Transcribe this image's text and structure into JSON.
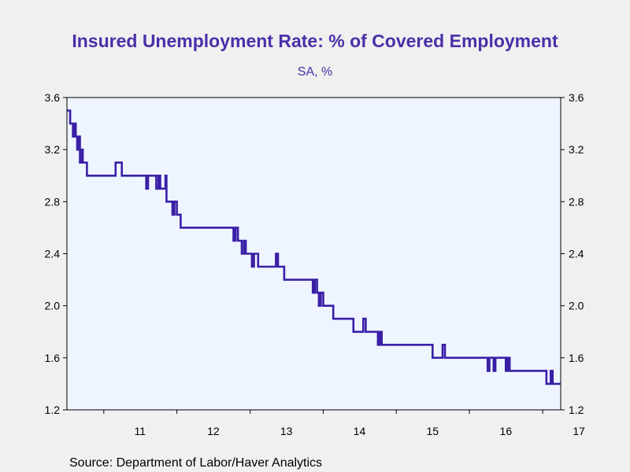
{
  "colors": {
    "title": "#4b2fa8",
    "line": "#3a1fa6",
    "plot_background": "#eef5ff",
    "page_background": "#f0f0f0",
    "axis": "#000000"
  },
  "chart_data": {
    "type": "line",
    "title": "Insured Unemployment Rate: % of Covered Employment",
    "subtitle": "SA, %",
    "source": "Source:  Department of Labor/Haver Analytics",
    "x_start": "2010-07",
    "x_end": "2017-04",
    "x_tick_labels": [
      "11",
      "12",
      "13",
      "14",
      "15",
      "16",
      "17"
    ],
    "y_ticks": [
      "3.6",
      "3.2",
      "2.8",
      "2.4",
      "2.0",
      "1.6",
      "1.2"
    ],
    "ylim": [
      1.2,
      3.6
    ],
    "right_axis": true,
    "grid": false,
    "series": [
      {
        "x": [
          "2010-07-03",
          "2010-07-10",
          "2010-07-17",
          "2010-07-24",
          "2010-07-31",
          "2010-08-07",
          "2010-08-14",
          "2010-08-21",
          "2010-08-28",
          "2010-09-04",
          "2010-09-11",
          "2010-09-18",
          "2010-09-25",
          "2010-10-02",
          "2010-10-09",
          "2010-10-16",
          "2010-10-23",
          "2010-10-30",
          "2010-11-06",
          "2010-11-13",
          "2010-11-20",
          "2010-11-27",
          "2010-12-04",
          "2010-12-11",
          "2010-12-18",
          "2010-12-25",
          "2011-01-01",
          "2011-02-01",
          "2011-03-01",
          "2011-04-01",
          "2011-04-10",
          "2011-04-15",
          "2011-04-20",
          "2011-05-01",
          "2011-06-01",
          "2011-07-01",
          "2011-08-01",
          "2011-08-10",
          "2011-08-20",
          "2011-09-01",
          "2011-09-20",
          "2011-10-01",
          "2011-10-10",
          "2011-10-20",
          "2011-11-01",
          "2011-11-05",
          "2011-11-10",
          "2011-11-20",
          "2011-12-01",
          "2011-12-10",
          "2011-12-20",
          "2012-01-01",
          "2012-01-10",
          "2012-01-20",
          "2012-02-01",
          "2012-02-10",
          "2012-03-01",
          "2012-04-01",
          "2012-05-01",
          "2012-06-01",
          "2012-07-01",
          "2012-08-01",
          "2012-09-01",
          "2012-10-01",
          "2012-10-10",
          "2012-10-20",
          "2012-11-01",
          "2012-11-10",
          "2012-11-20",
          "2012-12-01",
          "2012-12-10",
          "2012-12-20",
          "2013-01-01",
          "2013-01-10",
          "2013-01-20",
          "2013-02-01",
          "2013-02-10",
          "2013-02-20",
          "2013-03-01",
          "2013-03-10",
          "2013-04-01",
          "2013-05-01",
          "2013-05-10",
          "2013-05-20",
          "2013-06-01",
          "2013-06-20",
          "2013-07-01",
          "2013-07-10",
          "2013-08-01",
          "2013-09-01",
          "2013-10-01",
          "2013-11-01",
          "2013-11-10",
          "2013-11-20",
          "2013-12-01",
          "2013-12-10",
          "2013-12-20",
          "2014-01-01",
          "2014-01-10",
          "2014-01-20",
          "2014-02-01",
          "2014-02-20",
          "2014-03-01",
          "2014-04-01",
          "2014-05-01",
          "2014-06-01",
          "2014-07-01",
          "2014-07-10",
          "2014-07-20",
          "2014-08-01",
          "2014-08-15",
          "2014-09-01",
          "2014-10-01",
          "2014-10-10",
          "2014-10-20",
          "2014-11-01",
          "2014-12-01",
          "2015-01-01",
          "2015-02-01",
          "2015-03-01",
          "2015-04-01",
          "2015-05-01",
          "2015-06-01",
          "2015-07-01",
          "2015-08-01",
          "2015-08-10",
          "2015-08-20",
          "2015-09-01",
          "2015-10-01",
          "2015-11-01",
          "2015-12-01",
          "2016-01-01",
          "2016-02-01",
          "2016-03-01",
          "2016-04-01",
          "2016-04-10",
          "2016-04-20",
          "2016-05-01",
          "2016-05-10",
          "2016-05-20",
          "2016-06-01",
          "2016-07-01",
          "2016-07-10",
          "2016-07-20",
          "2016-08-01",
          "2016-09-01",
          "2016-10-01",
          "2016-11-01",
          "2016-12-01",
          "2017-01-01",
          "2017-01-10",
          "2017-01-20",
          "2017-02-01",
          "2017-02-10",
          "2017-02-20",
          "2017-03-01",
          "2017-03-15",
          "2017-04-01"
        ],
        "y": [
          3.5,
          3.5,
          3.4,
          3.4,
          3.3,
          3.4,
          3.3,
          3.2,
          3.3,
          3.1,
          3.2,
          3.1,
          3.1,
          3.1,
          3.0,
          3.0,
          3.0,
          3.0,
          3.0,
          3.0,
          3.0,
          3.0,
          3.0,
          3.0,
          3.0,
          3.0,
          3.0,
          3.0,
          3.1,
          3.0,
          3.0,
          3.0,
          3.0,
          3.0,
          3.0,
          3.0,
          2.9,
          3.0,
          3.0,
          3.0,
          2.9,
          3.0,
          2.9,
          2.9,
          2.9,
          3.0,
          2.8,
          2.8,
          2.8,
          2.7,
          2.8,
          2.7,
          2.7,
          2.6,
          2.6,
          2.6,
          2.6,
          2.6,
          2.6,
          2.6,
          2.6,
          2.6,
          2.6,
          2.6,
          2.5,
          2.6,
          2.5,
          2.5,
          2.4,
          2.5,
          2.4,
          2.4,
          2.4,
          2.3,
          2.4,
          2.4,
          2.3,
          2.3,
          2.3,
          2.3,
          2.3,
          2.3,
          2.4,
          2.3,
          2.3,
          2.2,
          2.2,
          2.2,
          2.2,
          2.2,
          2.2,
          2.2,
          2.1,
          2.2,
          2.1,
          2.0,
          2.1,
          2.0,
          2.0,
          2.0,
          2.0,
          1.9,
          1.9,
          1.9,
          1.9,
          1.8,
          1.8,
          1.8,
          1.9,
          1.8,
          1.8,
          1.8,
          1.7,
          1.8,
          1.7,
          1.7,
          1.7,
          1.7,
          1.7,
          1.7,
          1.7,
          1.7,
          1.7,
          1.6,
          1.6,
          1.6,
          1.7,
          1.6,
          1.6,
          1.6,
          1.6,
          1.6,
          1.6,
          1.6,
          1.5,
          1.6,
          1.6,
          1.5,
          1.6,
          1.6,
          1.6,
          1.5,
          1.6,
          1.5,
          1.5,
          1.5,
          1.5,
          1.5,
          1.5,
          1.5,
          1.5,
          1.4,
          1.4,
          1.5,
          1.4,
          1.4,
          1.4,
          1.4
        ]
      }
    ]
  }
}
